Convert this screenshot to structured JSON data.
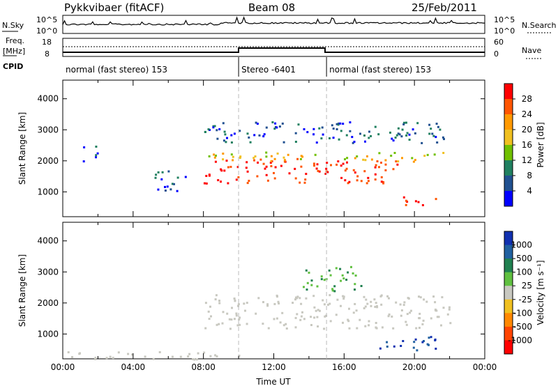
{
  "header": {
    "station": "Pykkvibaer (fitACF)",
    "beam": "Beam 08",
    "date": "25/Feb/2011"
  },
  "noise_panel": {
    "left_label": "N.Sky",
    "right_label": "N.Search",
    "left_ticks": [
      "10^5",
      "10^0"
    ],
    "right_ticks": [
      "10^5",
      "10^0"
    ]
  },
  "freq_panel": {
    "left_label_line1": "Freq.",
    "left_label_line2": "[MHz]",
    "right_label": "Nave",
    "left_ticks": [
      "18",
      "8"
    ],
    "right_ticks": [
      "60",
      "0"
    ]
  },
  "cpid": {
    "label": "CPID",
    "segments": [
      {
        "text": "normal (fast stereo) 153",
        "start_h": 0,
        "end_h": 10
      },
      {
        "text": "Stereo -6401",
        "start_h": 10,
        "end_h": 15
      },
      {
        "text": "normal (fast stereo) 153",
        "start_h": 15,
        "end_h": 24
      }
    ]
  },
  "chart_data": [
    {
      "type": "heatmap",
      "title": "",
      "parameter": "Power",
      "xlabel": "",
      "ylabel": "Slant Range [km]",
      "xlim_h": [
        0,
        24
      ],
      "ylim_km": [
        200,
        4600
      ],
      "yticks": [
        "4000",
        "3000",
        "2000",
        "1000"
      ],
      "yticks_values": [
        4000,
        3000,
        2000,
        1000
      ],
      "colorbar_title": "Power [dB]",
      "colorbar_labels": [
        "28",
        "24",
        "20",
        "16",
        "12",
        "8",
        "4"
      ],
      "colorbar_values": [
        28,
        24,
        20,
        16,
        12,
        8,
        4
      ],
      "colorbar_colors": [
        "#ff0000",
        "#ff5500",
        "#ff9900",
        "#f0c020",
        "#70c000",
        "#208060",
        "#205090",
        "#0000ff"
      ],
      "echo_regions": [
        {
          "t0": 8.0,
          "t1": 19.0,
          "r0": 1300,
          "r1": 2100,
          "level": "high"
        },
        {
          "t0": 8.0,
          "t1": 22.0,
          "r0": 2000,
          "r1": 2300,
          "level": "medium"
        },
        {
          "t0": 8.0,
          "t1": 22.0,
          "r0": 2600,
          "r1": 3300,
          "level": "low"
        },
        {
          "t0": 19.0,
          "t1": 21.5,
          "r0": 600,
          "r1": 900,
          "level": "high"
        },
        {
          "t0": 1.0,
          "t1": 2.0,
          "r0": 2000,
          "r1": 2500,
          "level": "low"
        },
        {
          "t0": 5.0,
          "t1": 7.0,
          "r0": 1000,
          "r1": 1700,
          "level": "low"
        }
      ]
    },
    {
      "type": "heatmap",
      "title": "",
      "parameter": "Velocity",
      "xlabel": "Time UT",
      "ylabel": "Slant Range [km]",
      "xlim_h": [
        0,
        24
      ],
      "ylim_km": [
        200,
        4600
      ],
      "xticks": [
        "00:00",
        "04:00",
        "08:00",
        "12:00",
        "16:00",
        "20:00",
        "00:00"
      ],
      "xticks_values": [
        0,
        4,
        8,
        12,
        16,
        20,
        24
      ],
      "yticks": [
        "4000",
        "3000",
        "2000",
        "1000"
      ],
      "yticks_values": [
        4000,
        3000,
        2000,
        1000
      ],
      "colorbar_title": "Velocity [m s⁻¹]",
      "colorbar_labels": [
        "1000",
        "500",
        "100",
        "25",
        "-25",
        "-100",
        "-500",
        "-1000"
      ],
      "colorbar_values": [
        1000,
        500,
        100,
        25,
        -25,
        -100,
        -500,
        -1000
      ],
      "colorbar_colors": [
        "#1030b0",
        "#2060a0",
        "#208050",
        "#60c040",
        "#c8c8c0",
        "#f0c020",
        "#ff8800",
        "#ff4400",
        "#ff0000"
      ],
      "echo_regions": [
        {
          "t0": 8.0,
          "t1": 22.0,
          "r0": 1200,
          "r1": 2300,
          "level": "ground"
        },
        {
          "t0": 13.5,
          "t1": 17.0,
          "r0": 2400,
          "r1": 3200,
          "level": "positive"
        },
        {
          "t0": 18.0,
          "t1": 21.5,
          "r0": 500,
          "r1": 1000,
          "level": "positive-strong"
        },
        {
          "t0": 0.0,
          "t1": 10.0,
          "r0": 200,
          "r1": 450,
          "level": "ground"
        }
      ]
    }
  ]
}
